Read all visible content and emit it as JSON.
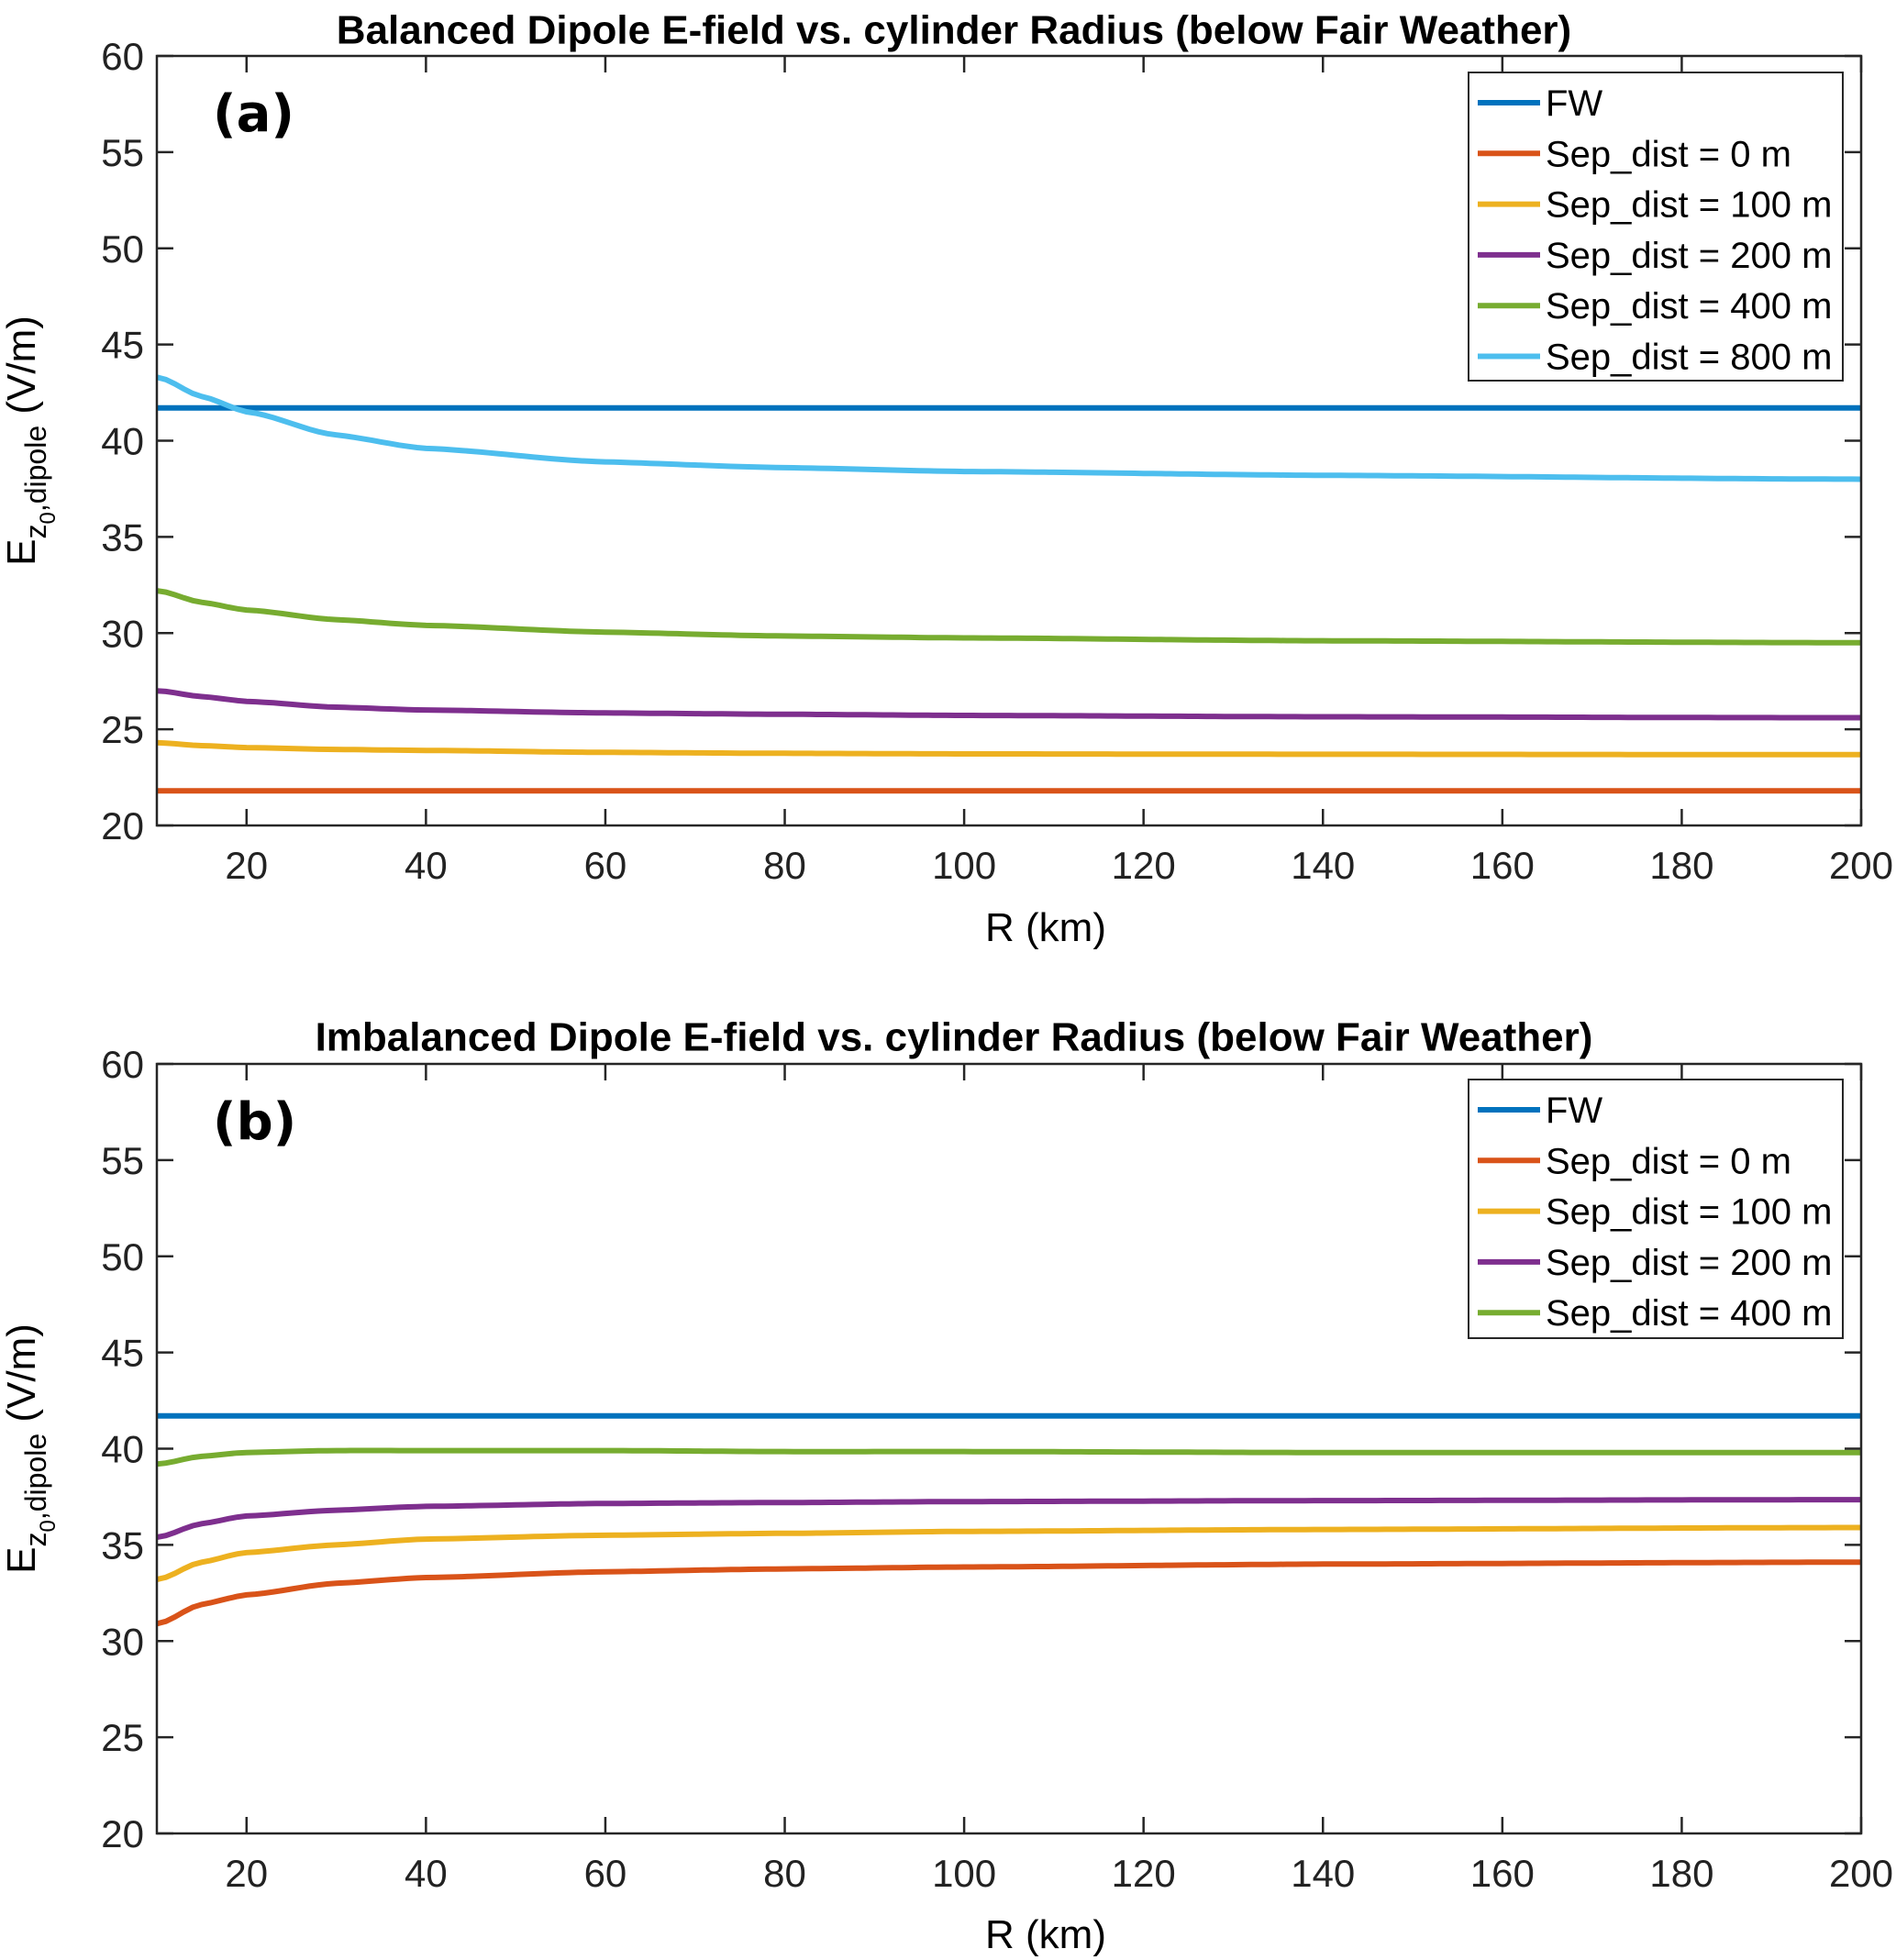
{
  "chart_data": [
    {
      "type": "line",
      "title": "Balanced Dipole E-field vs. cylinder Radius (below Fair Weather)",
      "panel_label": "(a)",
      "xlabel": "R (km)",
      "ylabel_parts": {
        "main": "E",
        "sub": "z",
        "subsub": "0",
        "sub2": ",dipole",
        "unit": " (V/m)"
      },
      "xlim": [
        10,
        200
      ],
      "ylim": [
        20,
        60
      ],
      "xticks": [
        20,
        40,
        60,
        80,
        100,
        120,
        140,
        160,
        180,
        200
      ],
      "yticks": [
        20,
        25,
        30,
        35,
        40,
        45,
        50,
        55,
        60
      ],
      "grid": false,
      "legend_placement": "top-right",
      "x": [
        10,
        15,
        20,
        30,
        40,
        60,
        80,
        100,
        140,
        200
      ],
      "series": [
        {
          "name": "FW",
          "color": "#0072BD",
          "values": [
            41.7,
            41.7,
            41.7,
            41.7,
            41.7,
            41.7,
            41.7,
            41.7,
            41.7,
            41.7
          ]
        },
        {
          "name": "Sep_dist = 0 m",
          "color": "#D95319",
          "values": [
            21.8,
            21.8,
            21.8,
            21.8,
            21.8,
            21.8,
            21.8,
            21.8,
            21.8,
            21.8
          ]
        },
        {
          "name": "Sep_dist = 100 m",
          "color": "#EDB120",
          "values": [
            24.3,
            24.15,
            24.05,
            23.95,
            23.9,
            23.8,
            23.75,
            23.72,
            23.7,
            23.68
          ]
        },
        {
          "name": "Sep_dist = 200 m",
          "color": "#7E2F8E",
          "values": [
            27.0,
            26.7,
            26.45,
            26.15,
            26.0,
            25.85,
            25.78,
            25.72,
            25.65,
            25.6
          ]
        },
        {
          "name": "Sep_dist = 400 m",
          "color": "#77AC30",
          "values": [
            32.2,
            31.6,
            31.2,
            30.7,
            30.4,
            30.05,
            29.85,
            29.75,
            29.6,
            29.5
          ]
        },
        {
          "name": "Sep_dist = 800 m",
          "color": "#4DBEEE",
          "values": [
            43.3,
            42.3,
            41.5,
            40.3,
            39.6,
            38.9,
            38.6,
            38.4,
            38.2,
            38.0
          ]
        }
      ]
    },
    {
      "type": "line",
      "title": "Imbalanced Dipole E-field vs. cylinder Radius (below Fair Weather)",
      "panel_label": "(b)",
      "xlabel": "R (km)",
      "ylabel_parts": {
        "main": "E",
        "sub": "z",
        "subsub": "0",
        "sub2": ",dipole",
        "unit": " (V/m)"
      },
      "xlim": [
        10,
        200
      ],
      "ylim": [
        20,
        60
      ],
      "xticks": [
        20,
        40,
        60,
        80,
        100,
        120,
        140,
        160,
        180,
        200
      ],
      "yticks": [
        20,
        25,
        30,
        35,
        40,
        45,
        50,
        55,
        60
      ],
      "grid": false,
      "legend_placement": "top-right",
      "x": [
        10,
        15,
        20,
        30,
        40,
        60,
        80,
        100,
        140,
        200
      ],
      "series": [
        {
          "name": "FW",
          "color": "#0072BD",
          "values": [
            41.7,
            41.7,
            41.7,
            41.7,
            41.7,
            41.7,
            41.7,
            41.7,
            41.7,
            41.7
          ]
        },
        {
          "name": "Sep_dist = 0 m",
          "color": "#D95319",
          "values": [
            30.9,
            31.9,
            32.4,
            33.0,
            33.3,
            33.6,
            33.75,
            33.85,
            34.0,
            34.1
          ]
        },
        {
          "name": "Sep_dist = 100 m",
          "color": "#EDB120",
          "values": [
            33.2,
            34.1,
            34.6,
            35.0,
            35.3,
            35.5,
            35.6,
            35.7,
            35.8,
            35.9
          ]
        },
        {
          "name": "Sep_dist = 200 m",
          "color": "#7E2F8E",
          "values": [
            35.4,
            36.1,
            36.5,
            36.8,
            37.0,
            37.15,
            37.2,
            37.25,
            37.3,
            37.35
          ]
        },
        {
          "name": "Sep_dist = 400 m",
          "color": "#77AC30",
          "values": [
            39.2,
            39.6,
            39.8,
            39.9,
            39.9,
            39.9,
            39.85,
            39.85,
            39.8,
            39.8
          ]
        }
      ]
    }
  ]
}
